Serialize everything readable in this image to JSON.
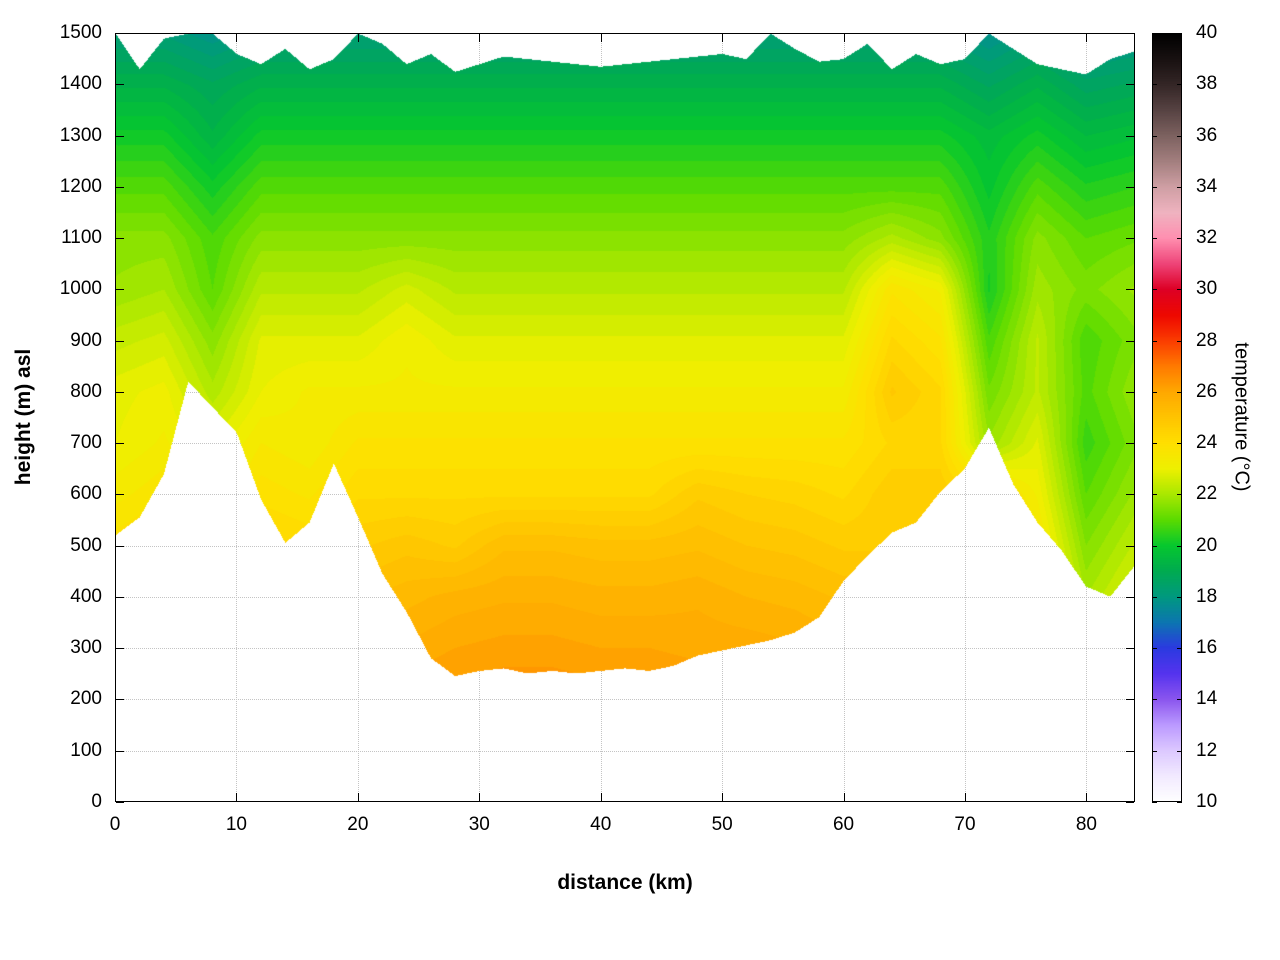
{
  "axes": {
    "xlabel": "distance (km)",
    "ylabel": "height (m) asl",
    "x_ticks": [
      0,
      10,
      20,
      30,
      40,
      50,
      60,
      70,
      80
    ],
    "y_ticks": [
      0,
      100,
      200,
      300,
      400,
      500,
      600,
      700,
      800,
      900,
      1000,
      1100,
      1200,
      1300,
      1400,
      1500
    ],
    "x_range": [
      0,
      84
    ],
    "y_range": [
      0,
      1500
    ]
  },
  "colorbar": {
    "label": "temperature (°C)",
    "ticks": [
      10,
      12,
      14,
      16,
      18,
      20,
      22,
      24,
      26,
      28,
      30,
      32,
      34,
      36,
      38,
      40
    ],
    "range": [
      10,
      40
    ],
    "stops": [
      [
        10,
        "#ffffff"
      ],
      [
        11,
        "#f2eaff"
      ],
      [
        12,
        "#dcc8ff"
      ],
      [
        13,
        "#bb99ff"
      ],
      [
        14,
        "#8a55ee"
      ],
      [
        15,
        "#5533ee"
      ],
      [
        16,
        "#2b3ae0"
      ],
      [
        17,
        "#0c76b0"
      ],
      [
        18,
        "#00997f"
      ],
      [
        19,
        "#00ab50"
      ],
      [
        20,
        "#06c82e"
      ],
      [
        21,
        "#5bdb00"
      ],
      [
        22,
        "#aae800"
      ],
      [
        23,
        "#eef000"
      ],
      [
        24,
        "#ffdf00"
      ],
      [
        25,
        "#ffc400"
      ],
      [
        26,
        "#ffa800"
      ],
      [
        27,
        "#ff7a00"
      ],
      [
        28,
        "#fb3c00"
      ],
      [
        29,
        "#ee0800"
      ],
      [
        30,
        "#dd0025"
      ],
      [
        31,
        "#ee4478"
      ],
      [
        32,
        "#ff8fb0"
      ],
      [
        33,
        "#efb3c0"
      ],
      [
        34,
        "#cf9fa4"
      ],
      [
        35,
        "#a37f7f"
      ],
      [
        36,
        "#7d6260"
      ],
      [
        37,
        "#574343"
      ],
      [
        38,
        "#342626"
      ],
      [
        39,
        "#181111"
      ],
      [
        40,
        "#000000"
      ]
    ]
  },
  "chart_data": {
    "type": "heatmap",
    "title": "",
    "xlabel": "distance (km)",
    "ylabel": "height (m) asl",
    "zlabel": "temperature (°C)",
    "xlim": [
      0,
      84
    ],
    "ylim": [
      0,
      1500
    ],
    "zlim": [
      10,
      40
    ],
    "band_interval": 0.25,
    "x": [
      0,
      4,
      8,
      12,
      16,
      20,
      24,
      28,
      32,
      36,
      40,
      44,
      48,
      52,
      56,
      60,
      64,
      68,
      72,
      76,
      80,
      84
    ],
    "y": [
      0,
      100,
      200,
      300,
      400,
      500,
      600,
      700,
      800,
      900,
      1000,
      1100,
      1200,
      1300,
      1400,
      1500
    ],
    "temperature": [
      [
        25.8,
        26.1,
        25.6,
        26.3,
        26.1,
        26.6,
        26.8,
        27.0,
        27.1,
        27.1,
        27.0,
        27.0,
        26.9,
        26.9,
        26.8,
        26.6,
        26.6,
        26.6,
        26.6,
        25.6,
        23.4,
        24.2
      ],
      [
        25.5,
        25.8,
        25.3,
        26.0,
        25.8,
        26.3,
        26.5,
        26.7,
        26.8,
        26.8,
        26.7,
        26.7,
        26.6,
        26.6,
        26.5,
        26.3,
        26.3,
        26.3,
        26.3,
        25.3,
        23.1,
        23.9
      ],
      [
        25.2,
        25.5,
        25.0,
        25.7,
        25.5,
        26.0,
        26.2,
        26.4,
        26.5,
        26.5,
        26.4,
        26.4,
        26.3,
        26.3,
        26.2,
        26.0,
        26.0,
        26.0,
        26.0,
        25.0,
        22.8,
        23.6
      ],
      [
        24.8,
        25.1,
        24.6,
        25.3,
        25.1,
        25.6,
        25.8,
        26.0,
        26.1,
        26.1,
        26.0,
        26.0,
        25.9,
        25.9,
        25.8,
        25.6,
        25.6,
        25.6,
        25.6,
        24.6,
        22.4,
        23.2
      ],
      [
        24.4,
        24.7,
        24.2,
        24.9,
        24.7,
        25.2,
        25.4,
        25.6,
        25.7,
        25.7,
        25.6,
        25.6,
        25.7,
        25.5,
        25.4,
        25.2,
        25.2,
        25.2,
        25.2,
        24.2,
        22.0,
        22.8
      ],
      [
        23.9,
        24.2,
        23.7,
        24.4,
        24.2,
        24.7,
        24.9,
        24.7,
        25.2,
        25.2,
        25.1,
        25.1,
        25.2,
        25.0,
        24.9,
        24.7,
        24.7,
        24.7,
        24.7,
        23.7,
        21.5,
        22.3
      ],
      [
        23.4,
        23.7,
        23.2,
        23.9,
        23.7,
        24.2,
        24.2,
        24.2,
        24.2,
        24.2,
        24.2,
        24.2,
        24.7,
        24.5,
        24.4,
        24.2,
        24.7,
        24.7,
        24.2,
        23.2,
        21.0,
        21.8
      ],
      [
        23.0,
        23.3,
        22.8,
        23.5,
        23.3,
        23.8,
        23.8,
        23.8,
        23.8,
        23.8,
        23.8,
        23.8,
        23.8,
        23.8,
        23.8,
        23.8,
        24.3,
        24.3,
        21.8,
        22.8,
        20.6,
        21.4
      ],
      [
        22.9,
        23.1,
        22.1,
        23.0,
        23.3,
        23.3,
        23.3,
        23.3,
        23.3,
        23.3,
        23.3,
        23.3,
        23.3,
        23.3,
        23.3,
        23.3,
        24.8,
        24.3,
        21.3,
        22.3,
        20.9,
        21.7
      ],
      [
        22.4,
        22.6,
        21.6,
        22.8,
        22.8,
        22.8,
        23.2,
        22.8,
        22.8,
        22.8,
        22.8,
        22.8,
        22.8,
        22.8,
        22.8,
        22.8,
        24.3,
        23.8,
        20.8,
        22.3,
        20.8,
        21.4
      ],
      [
        21.8,
        22.0,
        21.0,
        22.2,
        22.2,
        22.2,
        22.6,
        22.2,
        22.2,
        22.2,
        22.2,
        22.2,
        22.2,
        22.2,
        22.2,
        22.2,
        23.7,
        23.2,
        20.2,
        21.9,
        21.4,
        21.8
      ],
      [
        21.6,
        21.6,
        20.8,
        21.6,
        21.6,
        21.6,
        21.6,
        21.6,
        21.6,
        21.6,
        21.6,
        21.6,
        21.6,
        21.6,
        21.6,
        21.6,
        22.1,
        21.6,
        20.3,
        21.6,
        21.0,
        21.2
      ],
      [
        20.9,
        20.9,
        20.1,
        20.9,
        20.9,
        20.9,
        20.9,
        20.9,
        20.9,
        20.9,
        20.9,
        20.9,
        20.9,
        20.9,
        20.9,
        20.9,
        20.9,
        20.9,
        19.9,
        20.9,
        20.3,
        20.5
      ],
      [
        20.1,
        20.1,
        19.3,
        20.1,
        20.1,
        20.1,
        20.1,
        20.1,
        20.1,
        20.1,
        20.1,
        20.1,
        20.1,
        20.1,
        20.1,
        20.1,
        20.1,
        20.1,
        19.6,
        20.1,
        19.5,
        19.7
      ],
      [
        19.2,
        19.2,
        18.8,
        19.2,
        19.2,
        19.2,
        19.2,
        19.2,
        19.2,
        19.2,
        19.2,
        19.2,
        19.2,
        19.2,
        19.2,
        19.2,
        19.2,
        19.2,
        18.7,
        19.2,
        18.6,
        18.8
      ],
      [
        18.2,
        18.2,
        17.8,
        18.2,
        18.2,
        18.2,
        18.2,
        18.2,
        18.2,
        18.2,
        18.2,
        18.2,
        18.2,
        18.2,
        18.2,
        18.2,
        18.2,
        18.2,
        17.7,
        18.2,
        17.6,
        17.8
      ]
    ],
    "terrain_x": [
      0,
      2,
      4,
      6,
      8,
      10,
      12,
      14,
      16,
      18,
      20,
      22,
      24,
      26,
      28,
      30,
      32,
      34,
      36,
      38,
      40,
      42,
      44,
      46,
      48,
      50,
      52,
      54,
      56,
      58,
      60,
      62,
      64,
      66,
      68,
      70,
      72,
      74,
      76,
      78,
      80,
      82,
      84
    ],
    "terrain_height": [
      520,
      555,
      640,
      820,
      770,
      720,
      590,
      505,
      545,
      660,
      555,
      445,
      370,
      280,
      245,
      255,
      260,
      250,
      255,
      250,
      255,
      260,
      255,
      265,
      285,
      295,
      305,
      315,
      330,
      360,
      430,
      480,
      525,
      545,
      605,
      650,
      730,
      620,
      545,
      490,
      420,
      400,
      460
    ],
    "top_boundary": [
      1500,
      1430,
      1490,
      1500,
      1500,
      1460,
      1440,
      1470,
      1430,
      1450,
      1500,
      1480,
      1440,
      1460,
      1425,
      1440,
      1455,
      1450,
      1445,
      1440,
      1435,
      1440,
      1445,
      1450,
      1455,
      1460,
      1450,
      1500,
      1470,
      1445,
      1450,
      1480,
      1430,
      1460,
      1440,
      1450,
      1500,
      1470,
      1440,
      1430,
      1420,
      1450,
      1465
    ]
  }
}
